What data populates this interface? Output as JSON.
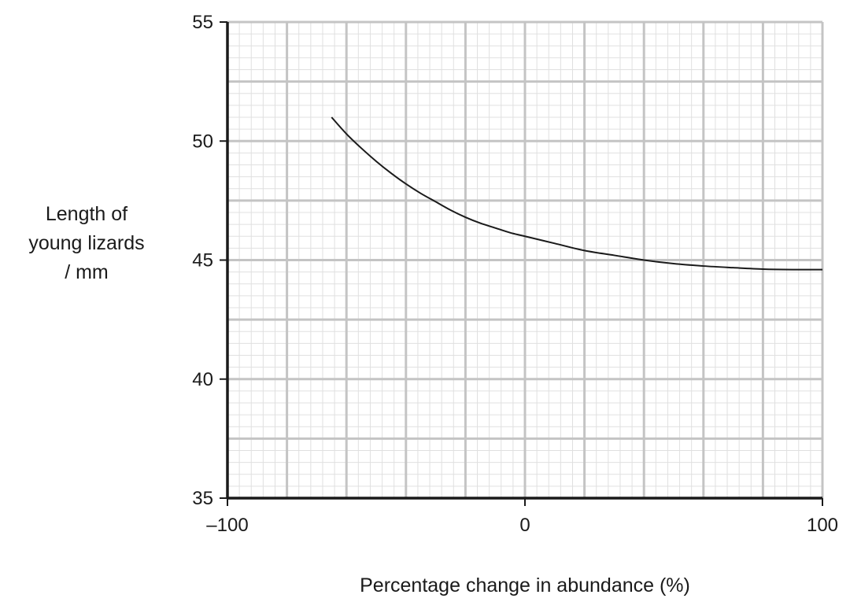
{
  "chart_data": {
    "type": "line",
    "title": "",
    "xlabel": "Percentage change in abundance (%)",
    "ylabel_lines": [
      "Length of",
      "young lizards",
      "/ mm"
    ],
    "xlim": [
      -100,
      100
    ],
    "ylim": [
      35,
      55
    ],
    "x_ticks": [
      -100,
      0,
      100
    ],
    "x_tick_labels": [
      "–100",
      "0",
      "100"
    ],
    "y_ticks": [
      35,
      40,
      45,
      50,
      55
    ],
    "y_tick_labels": [
      "35",
      "40",
      "45",
      "50",
      "55"
    ],
    "grid": true,
    "series": [
      {
        "x": [
          -65,
          -60,
          -55,
          -50,
          -45,
          -40,
          -35,
          -30,
          -25,
          -20,
          -15,
          -10,
          -5,
          0,
          10,
          20,
          30,
          40,
          50,
          60,
          70,
          80,
          90,
          100
        ],
        "values": [
          51.0,
          50.3,
          49.7,
          49.15,
          48.65,
          48.2,
          47.8,
          47.45,
          47.1,
          46.8,
          46.55,
          46.35,
          46.15,
          46.0,
          45.7,
          45.4,
          45.2,
          45.0,
          44.85,
          44.75,
          44.68,
          44.62,
          44.6,
          44.6
        ]
      }
    ],
    "colors": {
      "grid_major": "#c4c4c4",
      "grid_minor": "#e0e0e0",
      "axis": "#1a1a1a",
      "line": "#1a1a1a"
    }
  }
}
